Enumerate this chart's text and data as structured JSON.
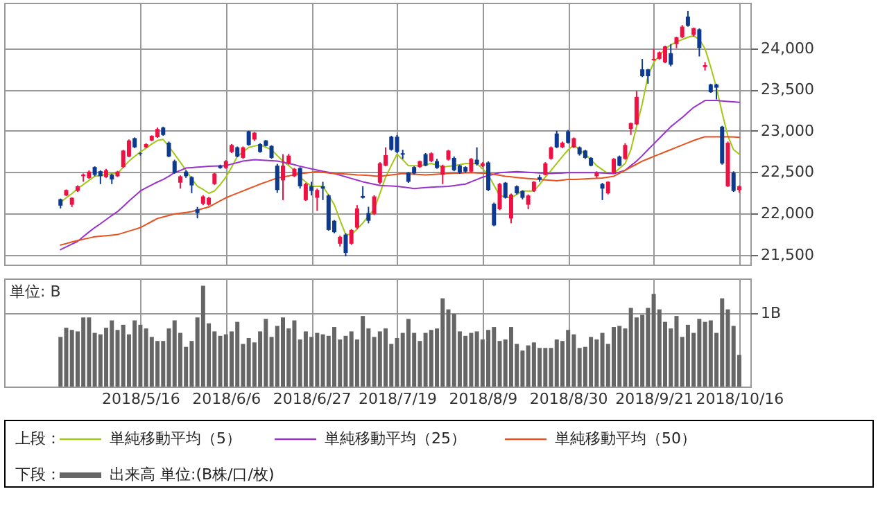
{
  "chart_data": [
    {
      "type": "candlestick",
      "categories": [
        null,
        null,
        null,
        null,
        null,
        null,
        null,
        null,
        null,
        null,
        null,
        null,
        null,
        null,
        "2018/5/16",
        null,
        null,
        null,
        null,
        null,
        null,
        null,
        null,
        null,
        null,
        null,
        null,
        null,
        null,
        "2018/6/6",
        null,
        null,
        null,
        null,
        null,
        null,
        null,
        null,
        null,
        null,
        null,
        null,
        null,
        null,
        "2018/6/27",
        null,
        null,
        null,
        null,
        null,
        null,
        null,
        null,
        null,
        null,
        null,
        null,
        null,
        null,
        "2018/7/19",
        null,
        null,
        null,
        null,
        null,
        null,
        null,
        null,
        null,
        null,
        null,
        null,
        null,
        null,
        "2018/8/9",
        null,
        null,
        null,
        null,
        null,
        null,
        null,
        null,
        null,
        null,
        null,
        null,
        null,
        null,
        "2018/8/30",
        null,
        null,
        null,
        null,
        null,
        null,
        null,
        null,
        null,
        null,
        null,
        null,
        null,
        null,
        "2018/9/21",
        null,
        null,
        null,
        null,
        null,
        null,
        null,
        null,
        null,
        null,
        null,
        null,
        null,
        null,
        "2018/10/16"
      ],
      "ohlc": [
        [
          22172,
          22180,
          22060,
          22094
        ],
        [
          22217,
          22290,
          22210,
          22283
        ],
        [
          22105,
          22195,
          22077,
          22189
        ],
        [
          22272,
          22340,
          22260,
          22328
        ],
        [
          22450,
          22483,
          22383,
          22470
        ],
        [
          22428,
          22520,
          22420,
          22506
        ],
        [
          22561,
          22570,
          22450,
          22467
        ],
        [
          22511,
          22520,
          22355,
          22450
        ],
        [
          22439,
          22540,
          22430,
          22522
        ],
        [
          22467,
          22480,
          22355,
          22411
        ],
        [
          22450,
          22515,
          22440,
          22506
        ],
        [
          22561,
          22770,
          22550,
          22761
        ],
        [
          22689,
          22895,
          22680,
          22883
        ],
        [
          22911,
          22920,
          22790,
          22800
        ],
        [
          22728,
          22740,
          22700,
          22722
        ],
        [
          22800,
          22850,
          22790,
          22839
        ],
        [
          22883,
          22945,
          22875,
          22939
        ],
        [
          22922,
          23040,
          22915,
          23022
        ],
        [
          23039,
          23050,
          22940,
          22950
        ],
        [
          22856,
          22870,
          22680,
          22689
        ],
        [
          22633,
          22650,
          22480,
          22494
        ],
        [
          22372,
          22460,
          22300,
          22450
        ],
        [
          22506,
          22520,
          22430,
          22450
        ],
        [
          22439,
          22450,
          22245,
          22339
        ],
        [
          22050,
          22078,
          21940,
          22005
        ],
        [
          22117,
          22220,
          22100,
          22206
        ],
        [
          22105,
          22200,
          22095,
          22189
        ],
        [
          22356,
          22490,
          22345,
          22483
        ],
        [
          22578,
          22590,
          22540,
          22550
        ],
        [
          22550,
          22645,
          22540,
          22633
        ],
        [
          22744,
          22840,
          22730,
          22828
        ],
        [
          22800,
          22810,
          22680,
          22689
        ],
        [
          22672,
          22810,
          22660,
          22800
        ],
        [
          22994,
          23000,
          22820,
          22828
        ],
        [
          22894,
          22985,
          22880,
          22978
        ],
        [
          22839,
          22850,
          22735,
          22744
        ],
        [
          22883,
          22890,
          22810,
          22817
        ],
        [
          22817,
          22825,
          22660,
          22672
        ],
        [
          22578,
          22600,
          22250,
          22283
        ],
        [
          22400,
          22717,
          22161,
          22578
        ],
        [
          22606,
          22720,
          22590,
          22700
        ],
        [
          22450,
          22550,
          22440,
          22539
        ],
        [
          22550,
          22560,
          22300,
          22328
        ],
        [
          22161,
          22370,
          22150,
          22356
        ],
        [
          22328,
          22383,
          22217,
          22272
        ],
        [
          22189,
          22300,
          22030,
          22283
        ],
        [
          22328,
          22383,
          22161,
          22300
        ],
        [
          22217,
          22230,
          21790,
          21800
        ],
        [
          21911,
          21920,
          21760,
          21772
        ],
        [
          21633,
          21730,
          21600,
          21717
        ],
        [
          21744,
          21760,
          21480,
          21522
        ],
        [
          21633,
          21810,
          21620,
          21800
        ],
        [
          21828,
          22100,
          21810,
          22061
        ],
        [
          22211,
          22328,
          22180,
          22189
        ],
        [
          22005,
          22080,
          21880,
          21911
        ],
        [
          21994,
          22220,
          21980,
          22206
        ],
        [
          22372,
          22620,
          22350,
          22606
        ],
        [
          22578,
          22800,
          22570,
          22706
        ],
        [
          22928,
          22940,
          22760,
          22772
        ],
        [
          22928,
          22950,
          22730,
          22744
        ],
        [
          22728,
          22770,
          22660,
          22711
        ],
        [
          22494,
          22500,
          22370,
          22383
        ],
        [
          22561,
          22570,
          22470,
          22483
        ],
        [
          22561,
          22640,
          22550,
          22633
        ],
        [
          22717,
          22730,
          22570,
          22578
        ],
        [
          22633,
          22740,
          22620,
          22728
        ],
        [
          22633,
          22660,
          22540,
          22550
        ],
        [
          22467,
          22590,
          22355,
          22578
        ],
        [
          22650,
          22770,
          22640,
          22761
        ],
        [
          22672,
          22690,
          22510,
          22522
        ],
        [
          22578,
          22590,
          22480,
          22494
        ],
        [
          22561,
          22570,
          22490,
          22506
        ],
        [
          22506,
          22670,
          22495,
          22661
        ],
        [
          22650,
          22800,
          22580,
          22594
        ],
        [
          22572,
          22620,
          22560,
          22606
        ],
        [
          22617,
          22630,
          22270,
          22283
        ],
        [
          22117,
          22130,
          21845,
          21855
        ],
        [
          22050,
          22370,
          22040,
          22356
        ],
        [
          22372,
          22380,
          22180,
          22189
        ],
        [
          21939,
          22240,
          21880,
          22228
        ],
        [
          22328,
          22340,
          22230,
          22244
        ],
        [
          22272,
          22280,
          22170,
          22189
        ],
        [
          22105,
          22230,
          22050,
          22217
        ],
        [
          22272,
          22390,
          22260,
          22383
        ],
        [
          22439,
          22467,
          22383,
          22411
        ],
        [
          22467,
          22620,
          22460,
          22606
        ],
        [
          22661,
          22810,
          22650,
          22800
        ],
        [
          22967,
          23000,
          22790,
          22800
        ],
        [
          22800,
          22870,
          22790,
          22856
        ],
        [
          22994,
          23010,
          22845,
          22856
        ],
        [
          22800,
          22920,
          22790,
          22911
        ],
        [
          22800,
          22810,
          22700,
          22717
        ],
        [
          22761,
          22770,
          22660,
          22672
        ],
        [
          22672,
          22680,
          22570,
          22578
        ],
        [
          22450,
          22510,
          22430,
          22494
        ],
        [
          22356,
          22370,
          22161,
          22300
        ],
        [
          22244,
          22390,
          22230,
          22383
        ],
        [
          22494,
          22670,
          22480,
          22661
        ],
        [
          22689,
          22700,
          22570,
          22578
        ],
        [
          22661,
          22850,
          22650,
          22828
        ],
        [
          23022,
          23100,
          22950,
          23094
        ],
        [
          23078,
          23480,
          23070,
          23411
        ],
        [
          23744,
          23870,
          23650,
          23661
        ],
        [
          23744,
          23750,
          23570,
          23661
        ],
        [
          23856,
          23994,
          23850,
          23872
        ],
        [
          23872,
          23960,
          23860,
          23950
        ],
        [
          23828,
          24030,
          23820,
          24022
        ],
        [
          23939,
          24050,
          23780,
          23800
        ],
        [
          24050,
          24140,
          24000,
          24133
        ],
        [
          24133,
          24280,
          24120,
          24261
        ],
        [
          24383,
          24450,
          24260,
          24272
        ],
        [
          24161,
          24250,
          24140,
          24244
        ],
        [
          24228,
          24240,
          23900,
          24005
        ],
        [
          23772,
          23830,
          23730,
          23795
        ],
        [
          23561,
          23570,
          23460,
          23467
        ],
        [
          23561,
          23570,
          23380,
          23522
        ],
        [
          23050,
          23060,
          22590,
          22605
        ],
        [
          22328,
          22870,
          22320,
          22855
        ],
        [
          22494,
          22510,
          22260,
          22272
        ],
        [
          22283,
          22340,
          22250,
          22328
        ]
      ],
      "colors": [
        "#0d3a8e",
        "#ee1144",
        "#ee1144",
        "#ee1144",
        "#ee1144",
        "#ee1144",
        "#0d3a8e",
        "#0d3a8e",
        "#ee1144",
        "#0d3a8e",
        "#ee1144",
        "#ee1144",
        "#ee1144",
        "#0d3a8e",
        "#0d3a8e",
        "#ee1144",
        "#ee1144",
        "#ee1144",
        "#0d3a8e",
        "#0d3a8e",
        "#0d3a8e",
        "#ee1144",
        "#0d3a8e",
        "#0d3a8e",
        "#0d3a8e",
        "#ee1144",
        "#ee1144",
        "#ee1144",
        "#0d3a8e",
        "#ee1144",
        "#ee1144",
        "#0d3a8e",
        "#ee1144",
        "#0d3a8e",
        "#ee1144",
        "#0d3a8e",
        "#0d3a8e",
        "#0d3a8e",
        "#0d3a8e",
        "#ee1144",
        "#ee1144",
        "#ee1144",
        "#0d3a8e",
        "#ee1144",
        "#0d3a8e",
        "#ee1144",
        "#0d3a8e",
        "#0d3a8e",
        "#0d3a8e",
        "#ee1144",
        "#0d3a8e",
        "#ee1144",
        "#ee1144",
        "#0d3a8e",
        "#0d3a8e",
        "#ee1144",
        "#ee1144",
        "#ee1144",
        "#0d3a8e",
        "#0d3a8e",
        "#0d3a8e",
        "#0d3a8e",
        "#0d3a8e",
        "#ee1144",
        "#0d3a8e",
        "#ee1144",
        "#0d3a8e",
        "#ee1144",
        "#ee1144",
        "#0d3a8e",
        "#0d3a8e",
        "#0d3a8e",
        "#ee1144",
        "#0d3a8e",
        "#ee1144",
        "#0d3a8e",
        "#0d3a8e",
        "#ee1144",
        "#0d3a8e",
        "#ee1144",
        "#0d3a8e",
        "#0d3a8e",
        "#ee1144",
        "#ee1144",
        "#0d3a8e",
        "#ee1144",
        "#ee1144",
        "#0d3a8e",
        "#ee1144",
        "#0d3a8e",
        "#ee1144",
        "#0d3a8e",
        "#0d3a8e",
        "#0d3a8e",
        "#ee1144",
        "#0d3a8e",
        "#ee1144",
        "#ee1144",
        "#0d3a8e",
        "#ee1144",
        "#ee1144",
        "#ee1144",
        "#0d3a8e",
        "#0d3a8e",
        "#ee1144",
        "#ee1144",
        "#ee1144",
        "#0d3a8e",
        "#ee1144",
        "#ee1144",
        "#0d3a8e",
        "#ee1144",
        "#0d3a8e",
        "#ee1144",
        "#0d3a8e",
        "#0d3a8e",
        "#0d3a8e",
        "#ee1144",
        "#0d3a8e",
        "#ee1144"
      ],
      "series": [
        {
          "name": "単純移動平均（5）",
          "type": "line",
          "color": "#a0c814",
          "values": [
            22133,
            22190,
            22240,
            22300,
            22350,
            22400,
            22450,
            22460,
            22470,
            22480,
            22483,
            22560,
            22633,
            22690,
            22744,
            22790,
            22840,
            22883,
            22895,
            22810,
            22717,
            22620,
            22522,
            22420,
            22328,
            22290,
            22244,
            22272,
            22350,
            22439,
            22560,
            22689,
            22745,
            22800,
            22815,
            22828,
            22800,
            22772,
            22700,
            22633,
            22580,
            22522,
            22439,
            22380,
            22328,
            22328,
            22328,
            22220,
            22105,
            21920,
            21744,
            21744,
            21810,
            21883,
            21970,
            22050,
            22240,
            22439,
            22580,
            22717,
            22650,
            22578,
            22578,
            22578,
            22590,
            22605,
            22585,
            22561,
            22570,
            22578,
            22590,
            22605,
            22605,
            22605,
            22540,
            22467,
            22340,
            22217,
            22200,
            22189,
            22230,
            22272,
            22272,
            22272,
            22350,
            22439,
            22520,
            22605,
            22690,
            22770,
            22828,
            22770,
            22717,
            22650,
            22578,
            22530,
            22483,
            22483,
            22545,
            22605,
            22772,
            23050,
            23328,
            23661,
            23828,
            23910,
            23994,
            24040,
            24078,
            24105,
            24133,
            24150,
            24105,
            23994,
            23772,
            23522,
            23217,
            22939,
            22772,
            22717
          ]
        },
        {
          "name": "単純移動平均（25）",
          "type": "line",
          "color": "#9932cc",
          "values": [
            21561,
            21595,
            21628,
            21661,
            21720,
            21775,
            21828,
            21875,
            21925,
            21975,
            22022,
            22085,
            22150,
            22210,
            22272,
            22310,
            22345,
            22380,
            22411,
            22450,
            22494,
            22520,
            22550,
            22555,
            22560,
            22565,
            22570,
            22572,
            22575,
            22578,
            22597,
            22615,
            22633,
            22642,
            22650,
            22646,
            22642,
            22638,
            22633,
            22620,
            22605,
            22590,
            22570,
            22555,
            22539,
            22525,
            22510,
            22497,
            22483,
            22463,
            22443,
            22423,
            22403,
            22383,
            22368,
            22353,
            22339,
            22335,
            22331,
            22328,
            22319,
            22310,
            22300,
            22306,
            22312,
            22317,
            22321,
            22324,
            22328,
            22337,
            22346,
            22355,
            22383,
            22411,
            22439,
            22457,
            22475,
            22494,
            22498,
            22502,
            22505,
            22501,
            22497,
            22494,
            22490,
            22487,
            22483,
            22487,
            22490,
            22494,
            22494,
            22494,
            22494,
            22494,
            22494,
            22490,
            22487,
            22483,
            22500,
            22522,
            22578,
            22633,
            22700,
            22772,
            22840,
            22911,
            22980,
            23050,
            23105,
            23161,
            23222,
            23283,
            23325,
            23367,
            23367,
            23367,
            23361,
            23355,
            23350,
            23344
          ]
        },
        {
          "name": "単純移動平均（50）",
          "type": "line",
          "color": "#e8501e",
          "values": [
            21617,
            21635,
            21654,
            21672,
            21687,
            21702,
            21717,
            21724,
            21730,
            21737,
            21744,
            21765,
            21786,
            21807,
            21828,
            21865,
            21902,
            21939,
            21957,
            21975,
            21994,
            22003,
            22012,
            22022,
            22040,
            22059,
            22078,
            22115,
            22152,
            22189,
            22217,
            22245,
            22272,
            22300,
            22327,
            22355,
            22379,
            22404,
            22428,
            22441,
            22454,
            22467,
            22483,
            22490,
            22498,
            22505,
            22498,
            22490,
            22483,
            22480,
            22477,
            22473,
            22467,
            22463,
            22459,
            22454,
            22450,
            22458,
            22466,
            22475,
            22483,
            22479,
            22475,
            22471,
            22467,
            22471,
            22475,
            22479,
            22483,
            22486,
            22488,
            22491,
            22494,
            22490,
            22487,
            22483,
            22472,
            22461,
            22450,
            22443,
            22435,
            22428,
            22422,
            22417,
            22411,
            22405,
            22400,
            22394,
            22403,
            22411,
            22411,
            22414,
            22418,
            22421,
            22425,
            22428,
            22439,
            22450,
            22486,
            22522,
            22559,
            22596,
            22633,
            22661,
            22689,
            22717,
            22745,
            22772,
            22800,
            22828,
            22855,
            22883,
            22906,
            22928,
            22928,
            22928,
            22928,
            22928,
            22925,
            22922
          ]
        }
      ],
      "ylim": [
        21380,
        24550
      ],
      "yticks": [
        {
          "value": 21500,
          "label": "21,500"
        },
        {
          "value": 22000,
          "label": "22,000"
        },
        {
          "value": 22500,
          "label": "22,500"
        },
        {
          "value": 23000,
          "label": "23,000"
        },
        {
          "value": 23500,
          "label": "23,500"
        },
        {
          "value": 24000,
          "label": "24,000"
        }
      ],
      "grid": true,
      "tick_labels": "y",
      "legend": "bottom",
      "legend_title": "上段："
    },
    {
      "type": "bar",
      "categories": [
        null,
        null,
        null,
        null,
        null,
        null,
        null,
        null,
        null,
        null,
        null,
        null,
        null,
        null,
        "2018/5/16",
        null,
        null,
        null,
        null,
        null,
        null,
        null,
        null,
        null,
        null,
        null,
        null,
        null,
        null,
        "2018/6/6",
        null,
        null,
        null,
        null,
        null,
        null,
        null,
        null,
        null,
        null,
        null,
        null,
        null,
        null,
        "2018/6/27",
        null,
        null,
        null,
        null,
        null,
        null,
        null,
        null,
        null,
        null,
        null,
        null,
        null,
        null,
        "2018/7/19",
        null,
        null,
        null,
        null,
        null,
        null,
        null,
        null,
        null,
        null,
        null,
        null,
        null,
        null,
        "2018/8/9",
        null,
        null,
        null,
        null,
        null,
        null,
        null,
        null,
        null,
        null,
        null,
        null,
        null,
        null,
        "2018/8/30",
        null,
        null,
        null,
        null,
        null,
        null,
        null,
        null,
        null,
        null,
        null,
        null,
        null,
        null,
        "2018/9/21",
        null,
        null,
        null,
        null,
        null,
        null,
        null,
        null,
        null,
        null,
        null,
        null,
        null,
        null,
        "2018/10/16"
      ],
      "series": [
        {
          "name": "出来高 単位:(B株/口/枚)",
          "color": "#666666",
          "values": [
            0.675,
            0.8,
            0.77,
            0.75,
            0.94,
            0.94,
            0.73,
            0.71,
            0.8,
            0.9,
            0.77,
            0.84,
            0.71,
            0.9,
            0.84,
            0.79,
            0.675,
            0.62,
            0.62,
            0.79,
            0.9,
            0.73,
            0.54,
            0.62,
            0.94,
            1.37,
            0.86,
            0.75,
            0.69,
            0.71,
            0.75,
            0.88,
            0.58,
            0.66,
            0.6,
            0.75,
            0.92,
            0.675,
            0.825,
            0.94,
            0.79,
            0.9,
            0.64,
            0.75,
            0.675,
            0.73,
            0.71,
            0.69,
            0.81,
            0.64,
            0.69,
            0.75,
            0.64,
            0.96,
            0.79,
            0.675,
            0.75,
            0.79,
            0.58,
            0.66,
            0.73,
            0.92,
            0.73,
            0.62,
            0.73,
            0.77,
            0.79,
            1.2,
            1.05,
            0.99,
            0.75,
            0.69,
            0.73,
            0.75,
            0.64,
            0.77,
            0.81,
            0.62,
            0.64,
            0.81,
            0.58,
            0.49,
            0.56,
            0.6,
            0.525,
            0.525,
            0.525,
            0.64,
            0.62,
            0.77,
            0.71,
            0.525,
            0.54,
            0.675,
            0.64,
            0.73,
            0.58,
            0.81,
            0.825,
            0.79,
            1.07,
            0.94,
            0.975,
            1.07,
            1.26,
            1.05,
            0.88,
            0.79,
            0.96,
            0.675,
            0.84,
            0.73,
            0.92,
            0.88,
            0.9,
            0.73,
            1.2,
            1.05,
            0.825,
            0.43
          ]
        }
      ],
      "ylim": [
        0,
        1.47
      ],
      "yticks": [
        {
          "value": 1,
          "label": "1B"
        }
      ],
      "annotations": [
        "単位: B"
      ],
      "grid": true,
      "legend": "bottom",
      "legend_title": "下段："
    }
  ]
}
